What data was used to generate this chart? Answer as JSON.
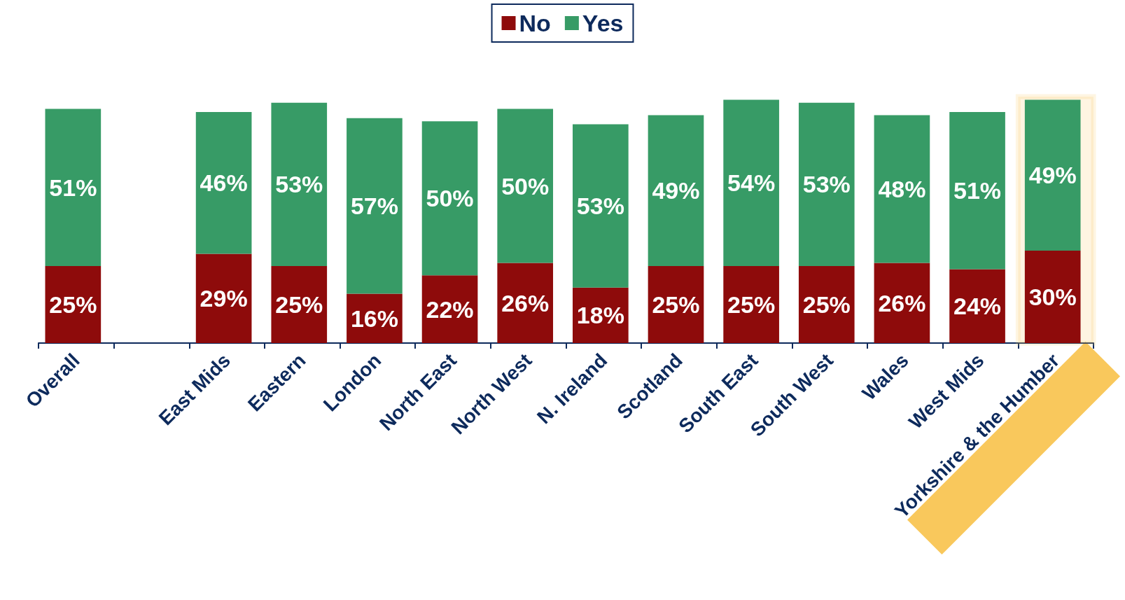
{
  "chart_data": {
    "type": "bar",
    "stacked": true,
    "legend": "top",
    "grid": false,
    "categories": [
      "Overall",
      null,
      "East Mids",
      "Eastern",
      "London",
      "North East",
      "North West",
      "N. Ireland",
      "Scotland",
      "South East",
      "South West",
      "Wales",
      "West Mids",
      "Yorkshire & the Humber"
    ],
    "series": [
      {
        "name": "No",
        "color": "#8e0b0b",
        "values": [
          25,
          null,
          29,
          25,
          16,
          22,
          26,
          18,
          25,
          25,
          25,
          26,
          24,
          30
        ],
        "value_labels": [
          "25%",
          null,
          "29%",
          "25%",
          "16%",
          "22%",
          "26%",
          "18%",
          "25%",
          "25%",
          "25%",
          "26%",
          "24%",
          "30%"
        ]
      },
      {
        "name": "Yes",
        "color": "#379b66",
        "values": [
          51,
          null,
          46,
          53,
          57,
          50,
          50,
          53,
          49,
          54,
          53,
          48,
          51,
          49
        ],
        "value_labels": [
          "51%",
          null,
          "46%",
          "53%",
          "57%",
          "50%",
          "50%",
          "53%",
          "49%",
          "54%",
          "53%",
          "48%",
          "51%",
          "49%"
        ]
      }
    ],
    "bands": [
      {
        "axis": "x",
        "from": "Yorkshire & the Humber",
        "to": "Yorkshire & the Humber",
        "color": "#f9c85c"
      }
    ]
  }
}
